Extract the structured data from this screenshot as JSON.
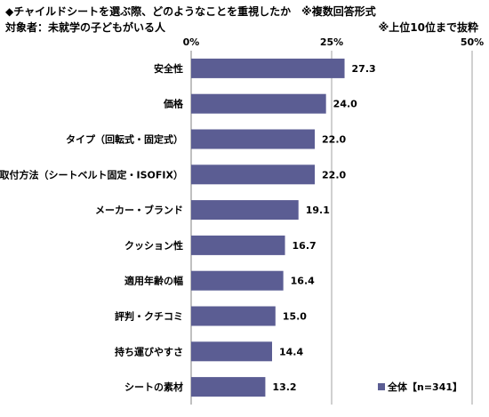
{
  "header": {
    "title": "◆チャイルドシートを選ぶ際、どのようなことを重視したか　※複数回答形式",
    "subtitle": "対象者：未就学の子どもがいる人",
    "note": "※上位10位まで抜粋"
  },
  "chart_data": {
    "type": "bar",
    "orientation": "horizontal",
    "categories": [
      "安全性",
      "価格",
      "タイプ（回転式・固定式）",
      "取付方法（シートベルト固定・ISOFIX）",
      "メーカー・ブランド",
      "クッション性",
      "適用年齢の幅",
      "評判・クチコミ",
      "持ち運びやすさ",
      "シートの素材"
    ],
    "series": [
      {
        "name": "全体【n=341】",
        "values": [
          27.3,
          24.0,
          22.0,
          22.0,
          19.1,
          16.7,
          16.4,
          15.0,
          14.4,
          13.2
        ],
        "value_labels": [
          "27.3",
          "24.0",
          "22.0",
          "22.0",
          "19.1",
          "16.7",
          "16.4",
          "15.0",
          "14.4",
          "13.2"
        ],
        "color": "#5b5d93"
      }
    ],
    "xlim": [
      0,
      50
    ],
    "xticks": [
      "0%",
      "25%",
      "50%"
    ],
    "tick_values": [
      0,
      25,
      50
    ],
    "grid_color": "#a0a0a0",
    "legend_position": "bottom-right"
  }
}
